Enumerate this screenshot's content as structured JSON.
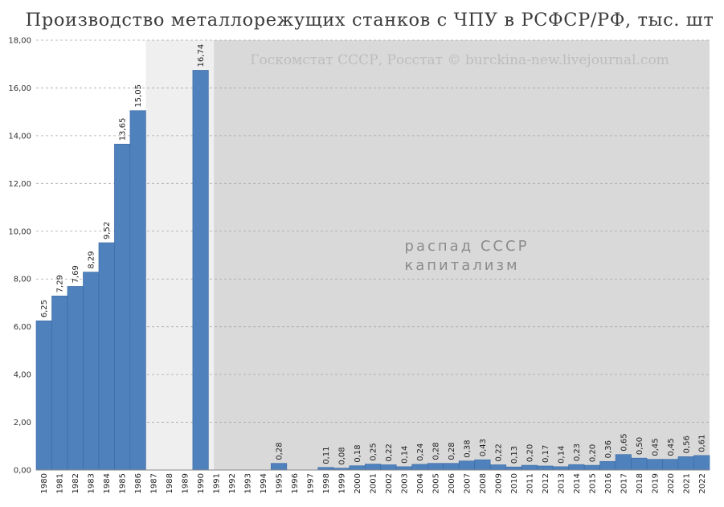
{
  "chart_data": {
    "type": "bar",
    "title": "Производство металлорежущих станков с ЧПУ в РСФСР/РФ, тыс. шт",
    "source_note": "Госкомстат СССР, Росстат © burckina-new.livejournal.com",
    "era_note_lines": [
      "распад СССР",
      "капитализм"
    ],
    "ylim": [
      0,
      18
    ],
    "ytick_labels": [
      "0,00",
      "2,00",
      "4,00",
      "6,00",
      "8,00",
      "10,00",
      "12,00",
      "14,00",
      "16,00",
      "18,00"
    ],
    "grid": true,
    "categories": [
      "1980",
      "1981",
      "1982",
      "1983",
      "1984",
      "1985",
      "1986",
      "1987",
      "1988",
      "1989",
      "1990",
      "1991",
      "1992",
      "1993",
      "1994",
      "1995",
      "1996",
      "1997",
      "1998",
      "1999",
      "2000",
      "2001",
      "2002",
      "2003",
      "2004",
      "2005",
      "2006",
      "2007",
      "2008",
      "2009",
      "2010",
      "2011",
      "2012",
      "2013",
      "2014",
      "2015",
      "2016",
      "2017",
      "2018",
      "2019",
      "2020",
      "2021",
      "2022"
    ],
    "values": [
      6.25,
      7.29,
      7.69,
      8.29,
      9.52,
      13.65,
      15.05,
      null,
      null,
      null,
      16.74,
      null,
      null,
      null,
      null,
      0.28,
      0.0,
      0.0,
      0.11,
      0.08,
      0.18,
      0.25,
      0.22,
      0.14,
      0.24,
      0.28,
      0.28,
      0.38,
      0.43,
      0.22,
      0.13,
      0.2,
      0.17,
      0.14,
      0.23,
      0.2,
      0.36,
      0.65,
      0.5,
      0.45,
      0.45,
      0.56,
      0.61
    ],
    "data_labels": [
      "6,25",
      "7,29",
      "7,69",
      "8,29",
      "9,52",
      "13,65",
      "15,05",
      "",
      "",
      "",
      "16,74",
      "",
      "",
      "",
      "",
      "0,28",
      "",
      "",
      "0,11",
      "0,08",
      "0,18",
      "0,25",
      "0,22",
      "0,14",
      "0,24",
      "0,28",
      "0,28",
      "0,38",
      "0,43",
      "0,22",
      "0,13",
      "0,20",
      "0,17",
      "0,14",
      "0,23",
      "0,20",
      "0,36",
      "0,65",
      "0,50",
      "0,45",
      "0,45",
      "0,56",
      "0,61"
    ],
    "bar_color": "#4f81bd",
    "bar_edge_color": "#3a6aa3",
    "shaded_bands": [
      {
        "from": "1987",
        "to": "1990",
        "color": "#efefef"
      },
      {
        "from": "1991",
        "to": "2022",
        "color": "#d9d9d9"
      }
    ]
  }
}
